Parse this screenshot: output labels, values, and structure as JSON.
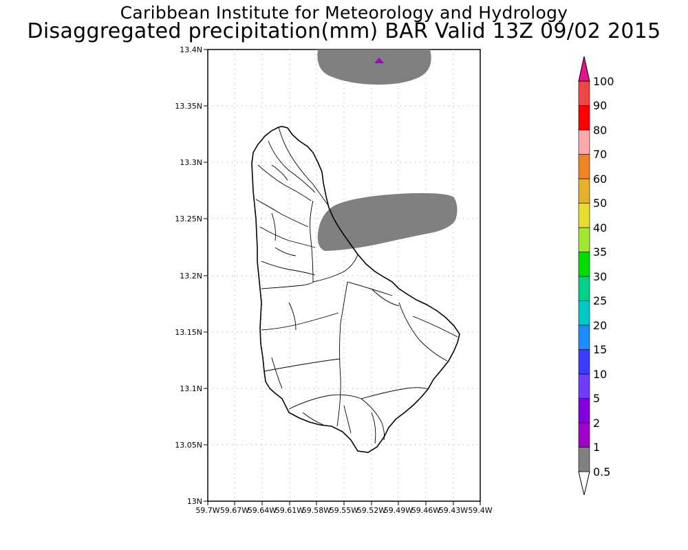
{
  "header": {
    "org": "Caribbean Institute for Meteorology and Hydrology",
    "product": "Disaggregated precipitation(mm) BAR Valid 13Z 09/02 2015"
  },
  "map": {
    "region": "Barbados",
    "lat_range": [
      13.0,
      13.4
    ],
    "lon_range": [
      -59.7,
      -59.4
    ],
    "y_tick_labels": [
      "13.4N",
      "13.35N",
      "13.3N",
      "13.25N",
      "13.2N",
      "13.15N",
      "13.1N",
      "13.05N",
      "13N"
    ],
    "x_tick_labels": [
      "59.7W",
      "59.67W",
      "59.64W",
      "59.61W",
      "59.58W",
      "59.55W",
      "59.52W",
      "59.49W",
      "59.46W",
      "59.43W",
      "59.4W"
    ],
    "grid": "dotted",
    "precip_areas": [
      {
        "level": "0.5-1",
        "color": "#808080",
        "location": "north offshore"
      },
      {
        "level": "0.5-1",
        "color": "#808080",
        "location": "east coast near 13.24N"
      },
      {
        "level": "1-2",
        "color": "#a000c8",
        "location": "small patch north offshore"
      }
    ]
  },
  "colorbar": {
    "levels": [
      "0.5",
      "1",
      "2",
      "5",
      "10",
      "15",
      "20",
      "25",
      "30",
      "35",
      "40",
      "50",
      "60",
      "70",
      "80",
      "90",
      "100"
    ],
    "colors": [
      "#ffffff",
      "#808080",
      "#a000c8",
      "#8200dc",
      "#6e3cff",
      "#3c3cff",
      "#1e8cff",
      "#00c8c8",
      "#00d28c",
      "#00dc00",
      "#a0e632",
      "#e6dc32",
      "#e6af2d",
      "#f08228",
      "#faaaaa",
      "#ff0000",
      "#f04646",
      "#e6148c"
    ]
  }
}
